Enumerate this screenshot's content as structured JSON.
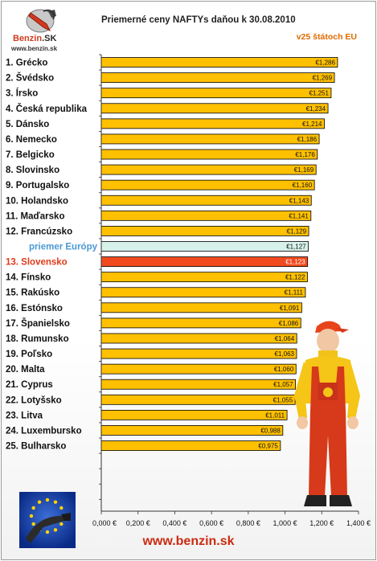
{
  "header": {
    "title": "Priemerné ceny NAFTYs daňou k 30.08.2010",
    "subtitle": "v25 štátoch EU",
    "logo_brand": "Benzin",
    "logo_brand_suffix": ".SK",
    "logo_url": "www.benzin.sk"
  },
  "footer": {
    "url": "www.benzin.sk"
  },
  "colors": {
    "bar": "#ffc000",
    "average_bar": "#d6f0ea",
    "highlight_bar": "#f24a1f",
    "average_label": "#4a9ad4",
    "highlight_label": "#e03a1a"
  },
  "chart_data": {
    "type": "bar",
    "orientation": "horizontal",
    "categories": [
      "1. Grécko",
      "2. Švédsko",
      "3. Írsko",
      "4. Česká republika",
      "5. Dánsko",
      "6. Nemecko",
      "7. Belgicko",
      "8. Slovinsko",
      "9. Portugalsko",
      "10. Holandsko",
      "11. Maďarsko",
      "12. Francúzsko",
      "priemer Európy",
      "13. Slovensko",
      "14. Fínsko",
      "15. Rakúsko",
      "16. Estónsko",
      "17. Španielsko",
      "18. Rumunsko",
      "19. Poľsko",
      "20. Malta",
      "21. Cyprus",
      "22. Lotyšsko",
      "23. Litva",
      "24. Luxembursko",
      "25. Bulharsko"
    ],
    "values": [
      1.286,
      1.269,
      1.251,
      1.234,
      1.214,
      1.186,
      1.176,
      1.169,
      1.16,
      1.143,
      1.141,
      1.129,
      1.127,
      1.123,
      1.122,
      1.111,
      1.091,
      1.086,
      1.064,
      1.063,
      1.06,
      1.057,
      1.055,
      1.011,
      0.988,
      0.975
    ],
    "value_labels": [
      "€1,286",
      "€1,269",
      "€1,251",
      "€1,234",
      "€1,214",
      "€1,186",
      "€1,176",
      "€1,169",
      "€1,160",
      "€1,143",
      "€1,141",
      "€1,129",
      "€1,127",
      "€1,123",
      "€1,122",
      "€1,111",
      "€1,091",
      "€1,086",
      "€1,064",
      "€1,063",
      "€1,060",
      "€1,057",
      "€1,055",
      "€1,011",
      "€0,988",
      "€0,975"
    ],
    "average_index": 12,
    "highlight_index": 13,
    "xlim": [
      0,
      1.4
    ],
    "x_ticks": [
      0,
      0.2,
      0.4,
      0.6,
      0.8,
      1.0,
      1.2,
      1.4
    ],
    "x_tick_labels": [
      "0,000 €",
      "0,200 €",
      "0,400 €",
      "0,600 €",
      "0,800 €",
      "1,000 €",
      "1,200 €",
      "1,400 €"
    ],
    "grid": false,
    "legend": "none"
  }
}
